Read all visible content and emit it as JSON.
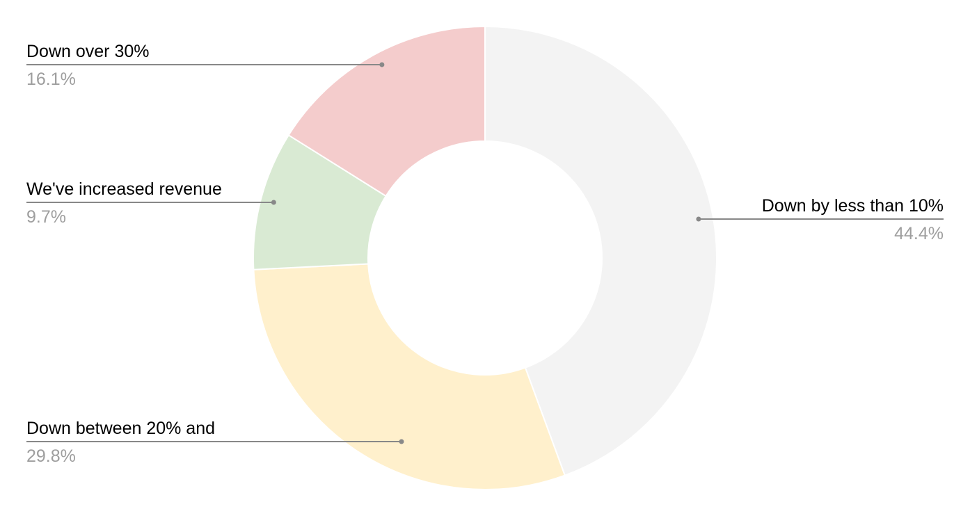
{
  "chart_data": {
    "type": "pie",
    "variant": "donut",
    "start_angle_deg": 0,
    "direction": "clockwise",
    "slices": [
      {
        "label": "Down by less than 10%",
        "percent_label": "44.4%",
        "value": 44.4,
        "color": "#f3f3f3",
        "label_side": "right"
      },
      {
        "label": "Down between 20% and",
        "percent_label": "29.8%",
        "value": 29.8,
        "color": "#fff0cc",
        "label_side": "left"
      },
      {
        "label": "We've increased revenue",
        "percent_label": "9.7%",
        "value": 9.7,
        "color": "#d9ead3",
        "label_side": "left"
      },
      {
        "label": "Down over 30%",
        "percent_label": "16.1%",
        "value": 16.1,
        "color": "#f4cccc",
        "label_side": "left"
      }
    ],
    "leader_line_color": "#888888",
    "slice_border_color": "#ffffff"
  }
}
